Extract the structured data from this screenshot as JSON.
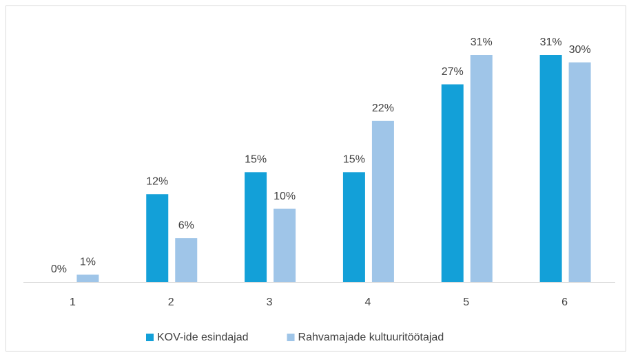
{
  "chart_data": {
    "type": "bar",
    "categories": [
      "1",
      "2",
      "3",
      "4",
      "5",
      "6"
    ],
    "series": [
      {
        "name": "KOV-ide esindajad",
        "color": "#13a0d8",
        "values": [
          0,
          12,
          15,
          15,
          27,
          31
        ],
        "value_labels": [
          "0%",
          "12%",
          "15%",
          "15%",
          "27%",
          "31%"
        ]
      },
      {
        "name": "Rahvamajade kultuuritöötajad",
        "color": "#9fc5e8",
        "values": [
          1,
          6,
          10,
          22,
          31,
          30
        ],
        "value_labels": [
          "1%",
          "6%",
          "10%",
          "22%",
          "31%",
          "30%"
        ]
      }
    ],
    "legend": "bottom"
  }
}
